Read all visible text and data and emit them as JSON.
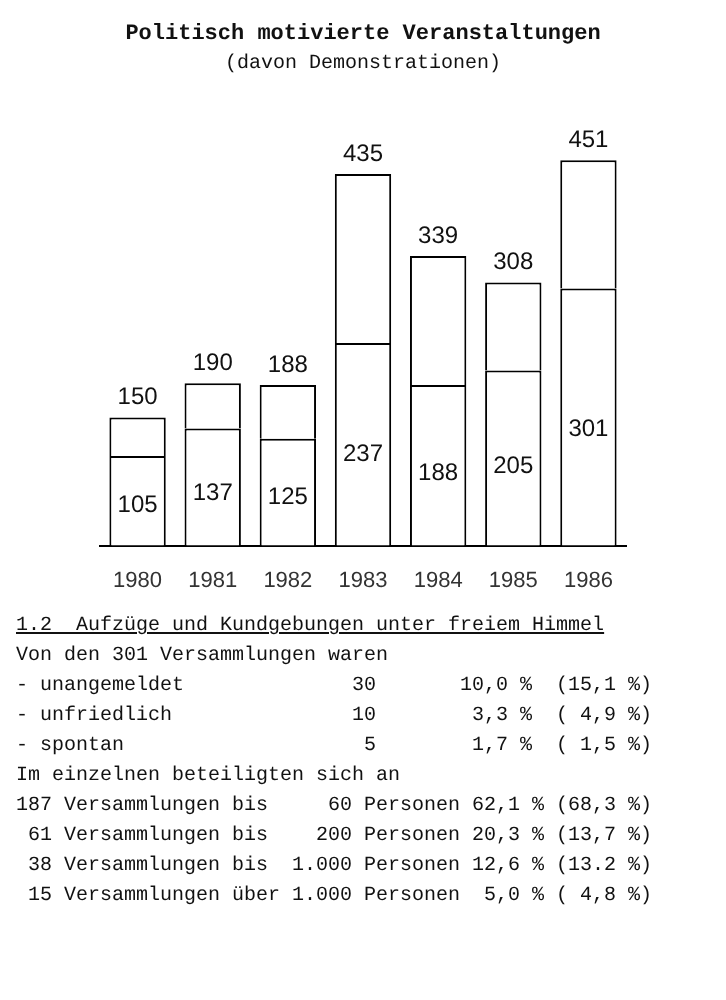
{
  "chart_data": {
    "type": "bar",
    "title": "Politisch motivierte Veranstaltungen",
    "subtitle": "(davon Demonstrationen)",
    "categories": [
      "1980",
      "1981",
      "1982",
      "1983",
      "1984",
      "1985",
      "1986"
    ],
    "stacked": true,
    "grid": false,
    "legend": false,
    "series": [
      {
        "color": "#ffffff",
        "values": [
          105,
          137,
          125,
          237,
          188,
          205,
          301
        ],
        "value_labels": [
          "105",
          "137",
          "125",
          "237",
          "188",
          "205",
          "301"
        ]
      },
      {
        "color": "#ffffff",
        "values": [
          45,
          53,
          63,
          198,
          151,
          103,
          150
        ]
      }
    ],
    "totals": [
      "150",
      "190",
      "188",
      "435",
      "339",
      "308",
      "451"
    ],
    "annotations": [
      "1.2  Aufzüge und Kundgebungen unter freiem Himmel",
      "Von den 301 Versammlungen waren",
      "- unangemeldet              30       10,0 %  (15,1 %)",
      "- unfriedlich               10        3,3 %  ( 4,9 %)",
      "- spontan                    5        1,7 %  ( 1,5 %)",
      "Im einzelnen beteiligten sich an",
      "187 Versammlungen bis     60 Personen 62,1 % (68,3 %)",
      " 61 Versammlungen bis    200 Personen 20,3 % (13,7 %)",
      " 38 Versammlungen bis  1.000 Personen 12,6 % (13.2 %)",
      " 15 Versammlungen über 1.000 Personen  5,0 % ( 4,8 %)"
    ]
  }
}
